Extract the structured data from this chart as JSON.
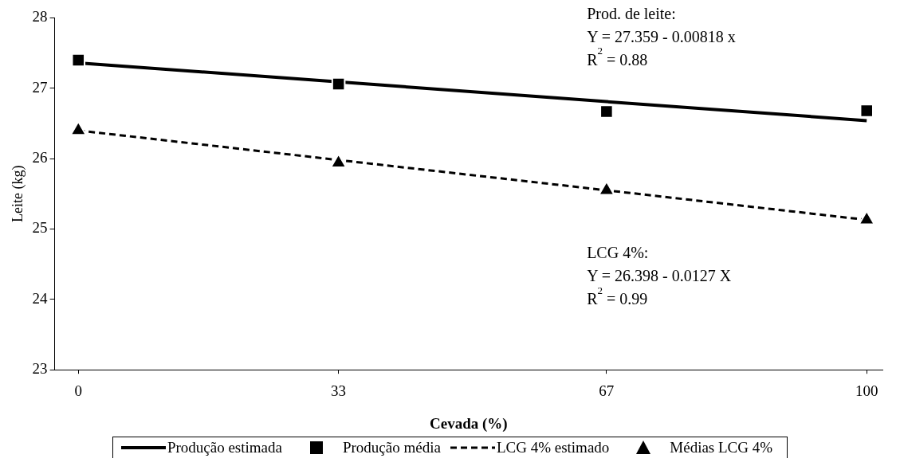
{
  "chart_data": {
    "type": "scatter",
    "xlabel": "Cevada (%)",
    "ylabel": "Leite (kg)",
    "x": [
      0,
      33,
      67,
      100
    ],
    "xlim": [
      -3,
      102
    ],
    "xticks": [
      0,
      33,
      67,
      100
    ],
    "ylim": [
      23,
      28
    ],
    "yticks": [
      23,
      24,
      25,
      26,
      27,
      28
    ],
    "grid": false,
    "legend": "bottom",
    "series": [
      {
        "name": "Produção estimada",
        "type": "line",
        "color": "#000000",
        "values": [
          27.36,
          27.09,
          26.81,
          26.54
        ],
        "line_style": "solid",
        "marker": "none"
      },
      {
        "name": "Produção média",
        "color": "#000000",
        "values": [
          27.4,
          27.06,
          26.67,
          26.68
        ],
        "marker": "square"
      },
      {
        "name": "LCG 4% estimado",
        "type": "line",
        "color": "#000000",
        "values": [
          26.4,
          25.98,
          25.55,
          25.13
        ],
        "line_style": "dashed",
        "marker": "none"
      },
      {
        "name": "Médias LCG 4%",
        "color": "#000000",
        "values": [
          26.4,
          25.94,
          25.55,
          25.13
        ],
        "marker": "triangle"
      }
    ],
    "annotations": [
      "Prod. de leite:",
      "Y = 27.359 - 0.00818 x",
      "R$^{2}$ = 0.88",
      "LCG 4%:",
      "Y = 26.398 - 0.0127 X",
      "R$^{2}$ = 0.99"
    ]
  }
}
